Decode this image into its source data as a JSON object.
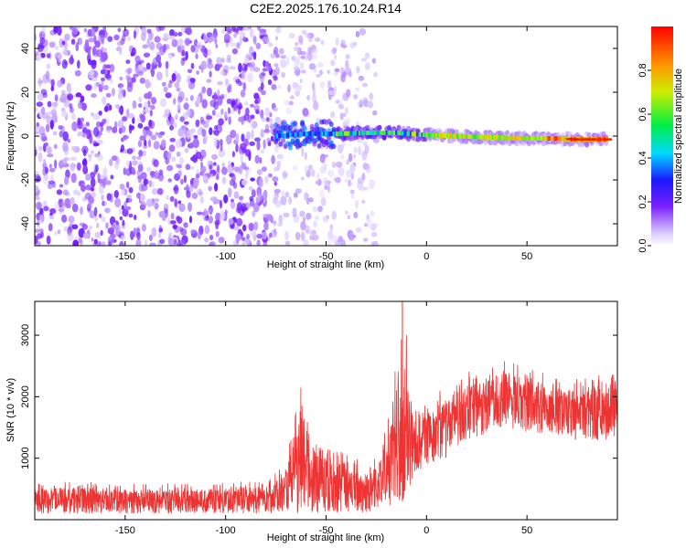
{
  "figure": {
    "title": "C2E2.2025.176.10.24.R14"
  },
  "chart_data": [
    {
      "type": "heatmap",
      "name": "spectrogram",
      "xlabel": "Height of straight line (km)",
      "ylabel": "Frequency (Hz)",
      "xlim": [
        -195,
        95
      ],
      "ylim": [
        -50,
        50
      ],
      "xticks": [
        -150,
        -100,
        -50,
        0,
        50
      ],
      "yticks": [
        -40,
        -20,
        0,
        20,
        40
      ],
      "colorbar": {
        "label": "Normalized spectral amplitude",
        "range": [
          0,
          1
        ],
        "ticks": [
          0.0,
          0.2,
          0.4,
          0.6,
          0.8
        ],
        "colormap": "rainbow (violet → blue → cyan → green → yellow → red)"
      },
      "regions": [
        {
          "x_range": [
            -195,
            -75
          ],
          "description": "broadband noise, amplitude ~0.0-0.2 across all frequencies"
        },
        {
          "x_range": [
            -75,
            -45
          ],
          "description": "signal emerges near 0 Hz, spread roughly -5 to +5 Hz, amplitude ~0.2-0.4"
        },
        {
          "x_range": [
            -45,
            0
          ],
          "description": "narrow band near 0 to +2 Hz, amplitude ~0.3-0.8"
        },
        {
          "x_range": [
            0,
            90
          ],
          "description": "strong narrow band near -1 Hz, peak amplitude ~1.0"
        }
      ],
      "ridge": {
        "x": [
          -75,
          -60,
          -45,
          -30,
          -15,
          0,
          15,
          30,
          45,
          60,
          75,
          90
        ],
        "y": [
          0,
          1,
          1,
          1.5,
          1.5,
          0.5,
          0,
          -0.5,
          -1,
          -1,
          -1.5,
          -1.5
        ]
      }
    },
    {
      "type": "line",
      "name": "snr",
      "xlabel": "Height of straight line (km)",
      "ylabel": "SNR (10 * v/v)",
      "xlim": [
        -195,
        95
      ],
      "ylim": [
        0,
        3550
      ],
      "xticks": [
        -150,
        -100,
        -50,
        0,
        50
      ],
      "yticks": [
        1000,
        2000,
        3000
      ],
      "series": [
        {
          "color": "#ee3333",
          "envelope_x": [
            -195,
            -150,
            -100,
            -80,
            -70,
            -62,
            -55,
            -45,
            -35,
            -28,
            -20,
            -12,
            -5,
            0,
            10,
            20,
            30,
            40,
            50,
            60,
            70,
            80,
            90,
            95
          ],
          "envelope_min": [
            100,
            100,
            100,
            100,
            100,
            100,
            100,
            100,
            100,
            100,
            200,
            300,
            700,
            900,
            1000,
            1300,
            1400,
            1500,
            1400,
            1400,
            1300,
            1300,
            1300,
            1300
          ],
          "envelope_max": [
            650,
            600,
            600,
            700,
            900,
            2400,
            1300,
            1200,
            1000,
            950,
            1500,
            3550,
            1800,
            1900,
            2200,
            2400,
            2450,
            2650,
            2500,
            2400,
            2300,
            2300,
            2400,
            2400
          ],
          "typical": [
            350,
            330,
            330,
            380,
            500,
            1000,
            750,
            650,
            550,
            500,
            800,
            1200,
            1300,
            1450,
            1650,
            1850,
            1950,
            2050,
            1950,
            1900,
            1850,
            1800,
            1800,
            1800
          ]
        }
      ]
    }
  ]
}
